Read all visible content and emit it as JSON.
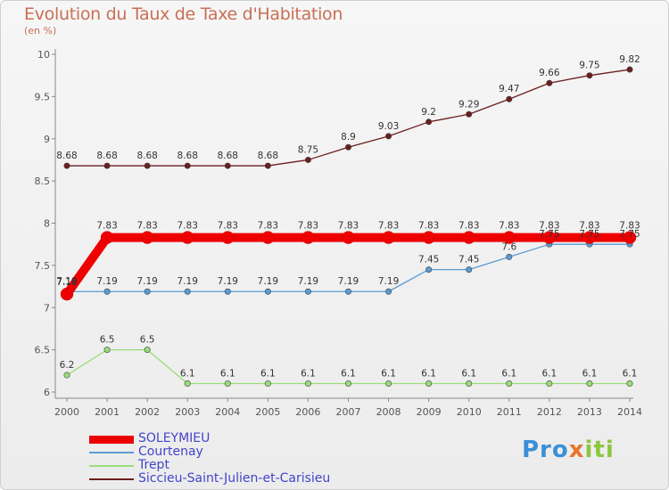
{
  "header": {
    "title": "Evolution du Taux de Taxe d'Habitation",
    "unit": "(en %)"
  },
  "logo": {
    "text": "Proxiti"
  },
  "colors": {
    "title": "#c96f55",
    "axis": "#666666",
    "legend_text": "#4444cc"
  },
  "chart_data": {
    "type": "line",
    "x": [
      2000,
      2001,
      2002,
      2003,
      2004,
      2005,
      2006,
      2007,
      2008,
      2009,
      2010,
      2011,
      2012,
      2013,
      2014
    ],
    "ylim": [
      6,
      10
    ],
    "yticks": [
      6,
      6.5,
      7,
      7.5,
      8,
      8.5,
      9,
      9.5,
      10
    ],
    "grid": false,
    "legend_position": "bottom-left",
    "series": [
      {
        "name": "SOLEYMIEU",
        "color": "#ee0000",
        "values": [
          7.16,
          7.83,
          7.83,
          7.83,
          7.83,
          7.83,
          7.83,
          7.83,
          7.83,
          7.83,
          7.83,
          7.83,
          7.83,
          7.83,
          7.83
        ],
        "labels": [
          "7.16",
          "7.83",
          "7.83",
          "7.83",
          "7.83",
          "7.83",
          "7.83",
          "7.83",
          "7.83",
          "7.83",
          "7.83",
          "7.83",
          "7.83",
          "7.83",
          "7.83"
        ]
      },
      {
        "name": "Courtenay",
        "color": "#5a9bd5",
        "values": [
          7.19,
          7.19,
          7.19,
          7.19,
          7.19,
          7.19,
          7.19,
          7.19,
          7.19,
          7.45,
          7.45,
          7.6,
          7.75,
          7.75,
          7.75
        ],
        "labels": [
          "7.19",
          "7.19",
          "7.19",
          "7.19",
          "7.19",
          "7.19",
          "7.19",
          "7.19",
          "7.19",
          "7.45",
          "7.45",
          "7.6",
          "7.75",
          "7.75",
          "7.75"
        ]
      },
      {
        "name": "Trept",
        "color": "#99dd77",
        "values": [
          6.2,
          6.5,
          6.5,
          6.1,
          6.1,
          6.1,
          6.1,
          6.1,
          6.1,
          6.1,
          6.1,
          6.1,
          6.1,
          6.1,
          6.1
        ],
        "labels": [
          "6.2",
          "6.5",
          "6.5",
          "6.1",
          "6.1",
          "6.1",
          "6.1",
          "6.1",
          "6.1",
          "6.1",
          "6.1",
          "6.1",
          "6.1",
          "6.1",
          "6.1"
        ]
      },
      {
        "name": "Siccieu-Saint-Julien-et-Carisieu",
        "color": "#6b1e1e",
        "values": [
          8.68,
          8.68,
          8.68,
          8.68,
          8.68,
          8.68,
          8.75,
          8.9,
          9.03,
          9.2,
          9.29,
          9.47,
          9.66,
          9.75,
          9.82
        ],
        "labels": [
          "8.68",
          "8.68",
          "8.68",
          "8.68",
          "8.68",
          "8.68",
          "8.75",
          "8.9",
          "9.03",
          "9.2",
          "9.29",
          "9.47",
          "9.66",
          "9.75",
          "9.82"
        ]
      }
    ]
  }
}
